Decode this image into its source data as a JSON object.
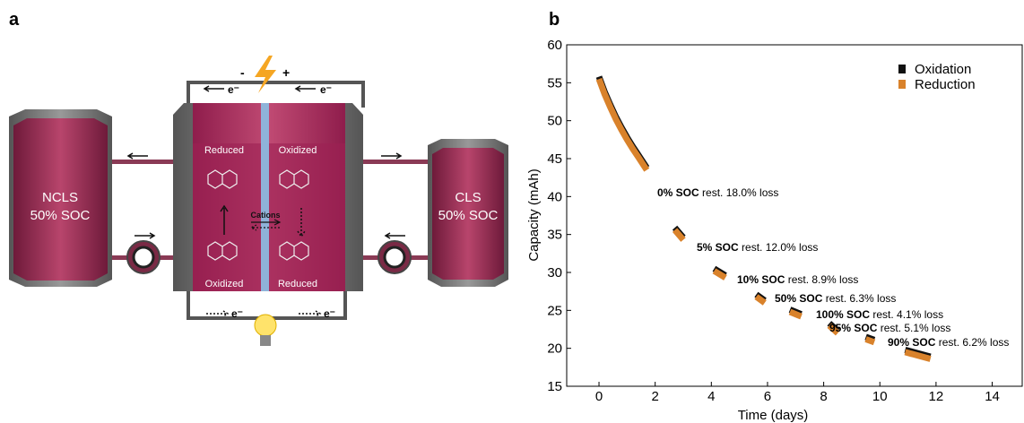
{
  "panel_labels": [
    "a",
    "b"
  ],
  "diagram": {
    "left_tank": [
      "NCLS",
      "50% SOC"
    ],
    "right_tank": [
      "CLS",
      "50% SOC"
    ],
    "cell_top": [
      "Reduced",
      "Oxidized"
    ],
    "cell_bottom": [
      "Oxidized",
      "Reduced"
    ],
    "membrane_label": "Cations",
    "terminals": [
      "-",
      "+"
    ],
    "electrons": [
      "e⁻",
      "e⁻",
      "e⁻",
      "e⁻"
    ]
  },
  "chart_data": {
    "type": "line",
    "xlabel": "Time (days)",
    "ylabel": "Capacity (mAh)",
    "xlim": [
      -1.15,
      15.1
    ],
    "ylim": [
      15,
      60
    ],
    "xticks": [
      0,
      2,
      4,
      6,
      8,
      10,
      12,
      14
    ],
    "yticks": [
      15,
      20,
      25,
      30,
      35,
      40,
      45,
      50,
      55,
      60
    ],
    "grid": false,
    "legend": "upper right",
    "x": [
      0,
      0.2,
      0.4,
      0.6,
      0.8,
      1.0,
      1.2,
      1.4,
      1.7,
      null,
      2.7,
      3.0,
      null,
      4.1,
      4.5,
      null,
      5.6,
      5.9,
      null,
      6.8,
      7.2,
      null,
      8.2,
      8.5,
      null,
      9.5,
      9.8,
      null,
      10.9,
      11.8
    ],
    "series": [
      {
        "name": "Oxidation",
        "color": "#111111",
        "values": [
          55.8,
          53.8,
          52.1,
          50.5,
          49.1,
          47.8,
          46.6,
          45.5,
          43.8,
          null,
          35.9,
          34.6,
          null,
          30.5,
          29.6,
          null,
          27.1,
          26.3,
          null,
          25.1,
          24.5,
          null,
          23.3,
          22.3,
          null,
          21.5,
          21.1,
          null,
          19.8,
          18.9
        ]
      },
      {
        "name": "Reduction",
        "color": "#d9822b",
        "values": [
          55.5,
          53.5,
          51.8,
          50.2,
          48.8,
          47.5,
          46.3,
          45.2,
          43.5,
          null,
          35.6,
          34.3,
          null,
          30.2,
          29.3,
          null,
          26.8,
          26.0,
          null,
          24.8,
          24.2,
          null,
          23.0,
          22.0,
          null,
          21.2,
          20.8,
          null,
          19.5,
          18.6
        ]
      }
    ],
    "annotations": [
      {
        "bold": "0% SOC",
        "text": " rest. 18.0% loss"
      },
      {
        "bold": "5% SOC",
        "text": " rest. 12.0% loss"
      },
      {
        "bold": "10% SOC",
        "text": " rest. 8.9% loss"
      },
      {
        "bold": "50% SOC",
        "text": " rest. 6.3% loss"
      },
      {
        "bold": "100% SOC",
        "text": " rest. 4.1% loss"
      },
      {
        "bold": "95% SOC",
        "text": " rest. 5.1% loss"
      },
      {
        "bold": "90% SOC",
        "text": " rest. 6.2% loss"
      }
    ]
  }
}
